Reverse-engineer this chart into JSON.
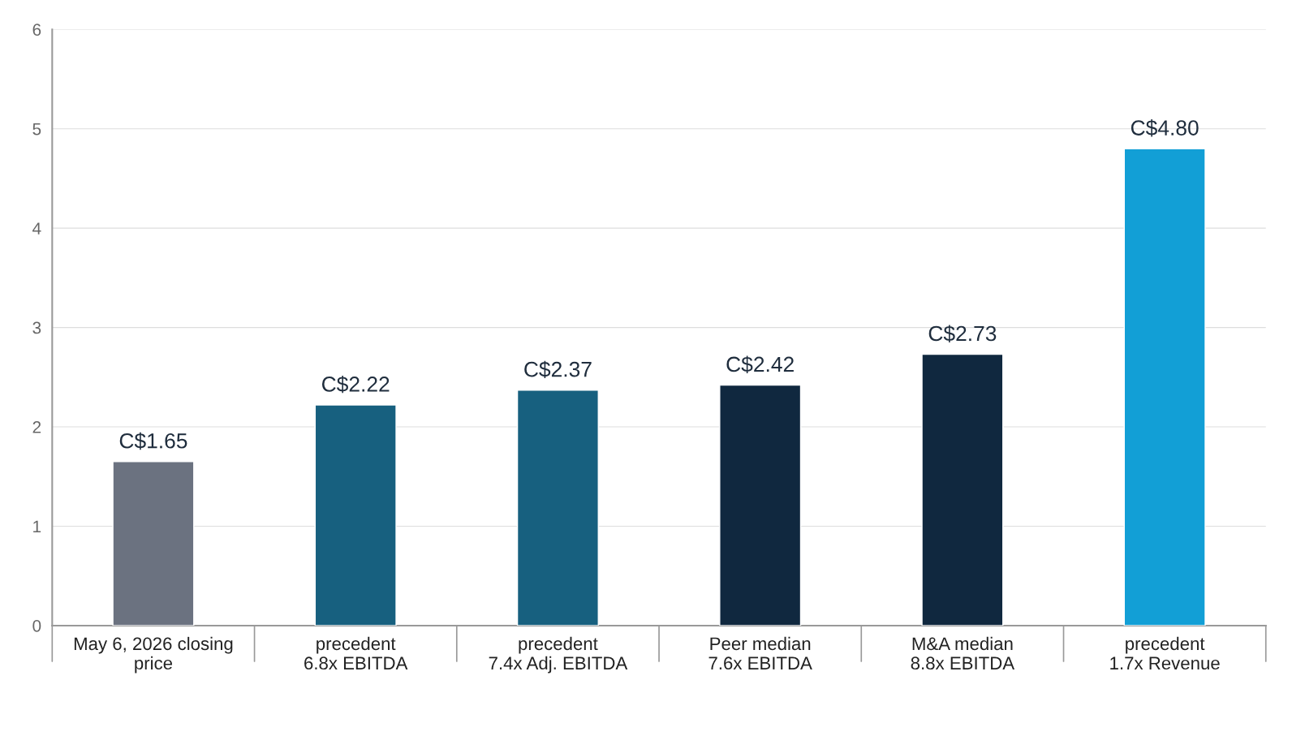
{
  "chart_data": {
    "type": "bar",
    "categories": [
      "May 6, 2026 closing\nprice",
      "precedent\n6.8x EBITDA",
      "precedent\n7.4x Adj. EBITDA",
      "Peer median\n7.6x EBITDA",
      "M&A median\n8.8x EBITDA",
      "precedent\n1.7x Revenue"
    ],
    "values": [
      1.65,
      2.22,
      2.37,
      2.42,
      2.73,
      4.8
    ],
    "colors": [
      "#6b7280",
      "#17607f",
      "#17607f",
      "#10283f",
      "#10283f",
      "#129fd6"
    ],
    "value_labels": [
      "C$1.65",
      "C$2.22",
      "C$2.37",
      "C$2.42",
      "C$2.73",
      "C$4.80"
    ],
    "ylim": [
      0,
      6
    ],
    "yticks": [
      0,
      1,
      2,
      3,
      4,
      5,
      6
    ],
    "grid": "y",
    "legend": false
  }
}
